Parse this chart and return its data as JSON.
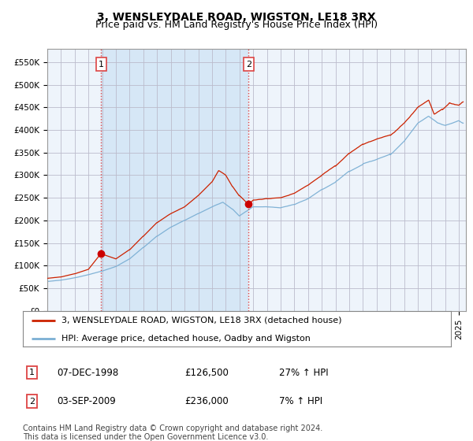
{
  "title": "3, WENSLEYDALE ROAD, WIGSTON, LE18 3RX",
  "subtitle": "Price paid vs. HM Land Registry's House Price Index (HPI)",
  "yticks": [
    0,
    50000,
    100000,
    150000,
    200000,
    250000,
    300000,
    350000,
    400000,
    450000,
    500000,
    550000
  ],
  "ylim": [
    0,
    580000
  ],
  "xlim_start": 1995.0,
  "xlim_end": 2025.5,
  "hpi_color": "#7bafd4",
  "price_color": "#cc2200",
  "marker_color": "#cc0000",
  "background_color": "#ffffff",
  "chart_bg_color": "#eef4fb",
  "grid_color": "#bbbbcc",
  "shade_color": "#d0e4f5",
  "purchase1_x": 1998.92,
  "purchase1_y": 126500,
  "purchase1_label": "1",
  "purchase2_x": 2009.67,
  "purchase2_y": 236000,
  "purchase2_label": "2",
  "legend_house": "3, WENSLEYDALE ROAD, WIGSTON, LE18 3RX (detached house)",
  "legend_hpi": "HPI: Average price, detached house, Oadby and Wigston",
  "transaction1_num": "1",
  "transaction1_date": "07-DEC-1998",
  "transaction1_price": "£126,500",
  "transaction1_hpi": "27% ↑ HPI",
  "transaction2_num": "2",
  "transaction2_date": "03-SEP-2009",
  "transaction2_price": "£236,000",
  "transaction2_hpi": "7% ↑ HPI",
  "footer": "Contains HM Land Registry data © Crown copyright and database right 2024.\nThis data is licensed under the Open Government Licence v3.0.",
  "vline_color": "#dd4444",
  "vline_style": ":",
  "title_fontsize": 10,
  "subtitle_fontsize": 9,
  "tick_fontsize": 7.5,
  "legend_fontsize": 8,
  "footer_fontsize": 7
}
